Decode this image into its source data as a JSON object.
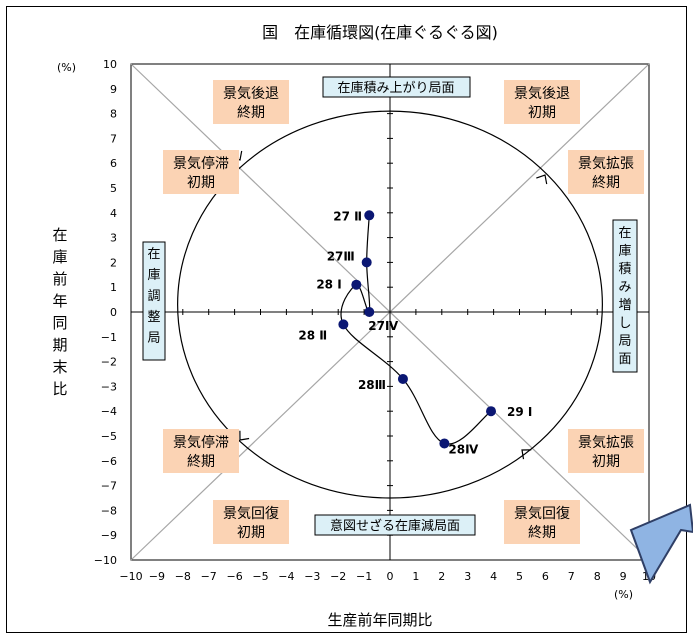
{
  "chart_data": {
    "type": "line",
    "title": "国　在庫循環図(在庫ぐるぐる図)",
    "xlabel": "生産前年同期比",
    "ylabel": "在庫前年同期末比",
    "x_unit": "(%)",
    "y_unit": "(%)",
    "xlim": [
      -10,
      10
    ],
    "ylim": [
      -10,
      10
    ],
    "x_ticks": [
      "−10",
      "−9",
      "−8",
      "−7",
      "−6",
      "−5",
      "−4",
      "−3",
      "−2",
      "−1",
      "0",
      "1",
      "2",
      "3",
      "4",
      "5",
      "6",
      "7",
      "8",
      "9",
      "10"
    ],
    "y_ticks": [
      "10",
      "9",
      "8",
      "7",
      "6",
      "5",
      "4",
      "3",
      "2",
      "1",
      "0",
      "−1",
      "−2",
      "−3",
      "−4",
      "−5",
      "−6",
      "−7",
      "−8",
      "−9",
      "−10"
    ],
    "grid": false,
    "series": [
      {
        "points": [
          {
            "label": "27 Ⅱ",
            "x": -0.8,
            "y": 3.9
          },
          {
            "label": "27Ⅲ",
            "x": -0.9,
            "y": 2.0
          },
          {
            "label": "27Ⅳ",
            "x": -0.8,
            "y": 0.0
          },
          {
            "label": "28 Ⅰ",
            "x": -1.3,
            "y": 1.1
          },
          {
            "label": "28 Ⅱ",
            "x": -1.8,
            "y": -0.5
          },
          {
            "label": "28Ⅲ",
            "x": 0.5,
            "y": -2.7
          },
          {
            "label": "28Ⅳ",
            "x": 2.1,
            "y": -5.3
          },
          {
            "label": "29 Ⅰ",
            "x": 3.9,
            "y": -4.0
          }
        ]
      }
    ],
    "phases": [
      {
        "line1": "景気後退",
        "line2": "終期"
      },
      {
        "line1": "景気後退",
        "line2": "初期"
      },
      {
        "line1": "景気停滞",
        "line2": "初期"
      },
      {
        "line1": "景気拡張",
        "line2": "終期"
      },
      {
        "line1": "景気停滞",
        "line2": "終期"
      },
      {
        "line1": "景気拡張",
        "line2": "初期"
      },
      {
        "line1": "景気回復",
        "line2": "初期"
      },
      {
        "line1": "景気回復",
        "line2": "終期"
      }
    ],
    "stages": {
      "top": "在庫積み上がり局面",
      "bottom": "意図せざる在庫減局面",
      "left": "在庫調整局",
      "right": "在庫積み増し局面"
    }
  }
}
